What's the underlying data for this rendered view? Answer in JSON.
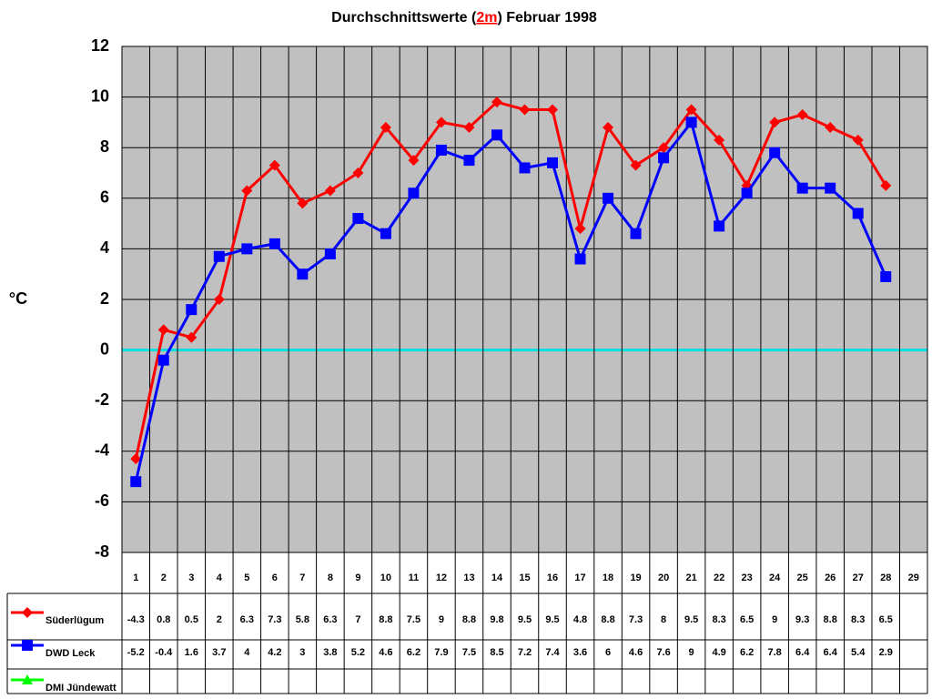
{
  "chart_data": {
    "type": "line",
    "title": {
      "before": "Durchschnittswerte (",
      "highlight": "2m",
      "after": ") Februar 1998",
      "highlight_color": "#ff0000"
    },
    "y_label": "°C",
    "categories": [
      "1",
      "2",
      "3",
      "4",
      "5",
      "6",
      "7",
      "8",
      "9",
      "10",
      "11",
      "12",
      "13",
      "14",
      "15",
      "16",
      "17",
      "18",
      "19",
      "20",
      "21",
      "22",
      "23",
      "24",
      "25",
      "26",
      "27",
      "28",
      "29"
    ],
    "series": [
      {
        "name": "Süderlügum",
        "color": "#ff0000",
        "marker": "diamond",
        "values": [
          -4.3,
          0.8,
          0.5,
          2,
          6.3,
          7.3,
          5.8,
          6.3,
          7,
          8.8,
          7.5,
          9,
          8.8,
          9.8,
          9.5,
          9.5,
          4.8,
          8.8,
          7.3,
          8,
          9.5,
          8.3,
          6.5,
          9,
          9.3,
          8.8,
          8.3,
          6.5,
          null
        ]
      },
      {
        "name": "DWD Leck",
        "color": "#0000ff",
        "marker": "square",
        "values": [
          -5.2,
          -0.4,
          1.6,
          3.7,
          4,
          4.2,
          3,
          3.8,
          5.2,
          4.6,
          6.2,
          7.9,
          7.5,
          8.5,
          7.2,
          7.4,
          3.6,
          6,
          4.6,
          7.6,
          9,
          4.9,
          6.2,
          7.8,
          6.4,
          6.4,
          5.4,
          2.9,
          null
        ]
      },
      {
        "name": "DMI Jündewatt",
        "color": "#00ff00",
        "marker": "triangle",
        "values": [
          null,
          null,
          null,
          null,
          null,
          null,
          null,
          null,
          null,
          null,
          null,
          null,
          null,
          null,
          null,
          null,
          null,
          null,
          null,
          null,
          null,
          null,
          null,
          null,
          null,
          null,
          null,
          null,
          null
        ]
      }
    ],
    "ylim": [
      -8,
      12
    ],
    "yticks": [
      -8,
      -6,
      -4,
      -2,
      0,
      2,
      4,
      6,
      8,
      10,
      12
    ],
    "grid": true,
    "plot_background": "#c0c0c0",
    "zero_line_color": "#00e0e0"
  }
}
